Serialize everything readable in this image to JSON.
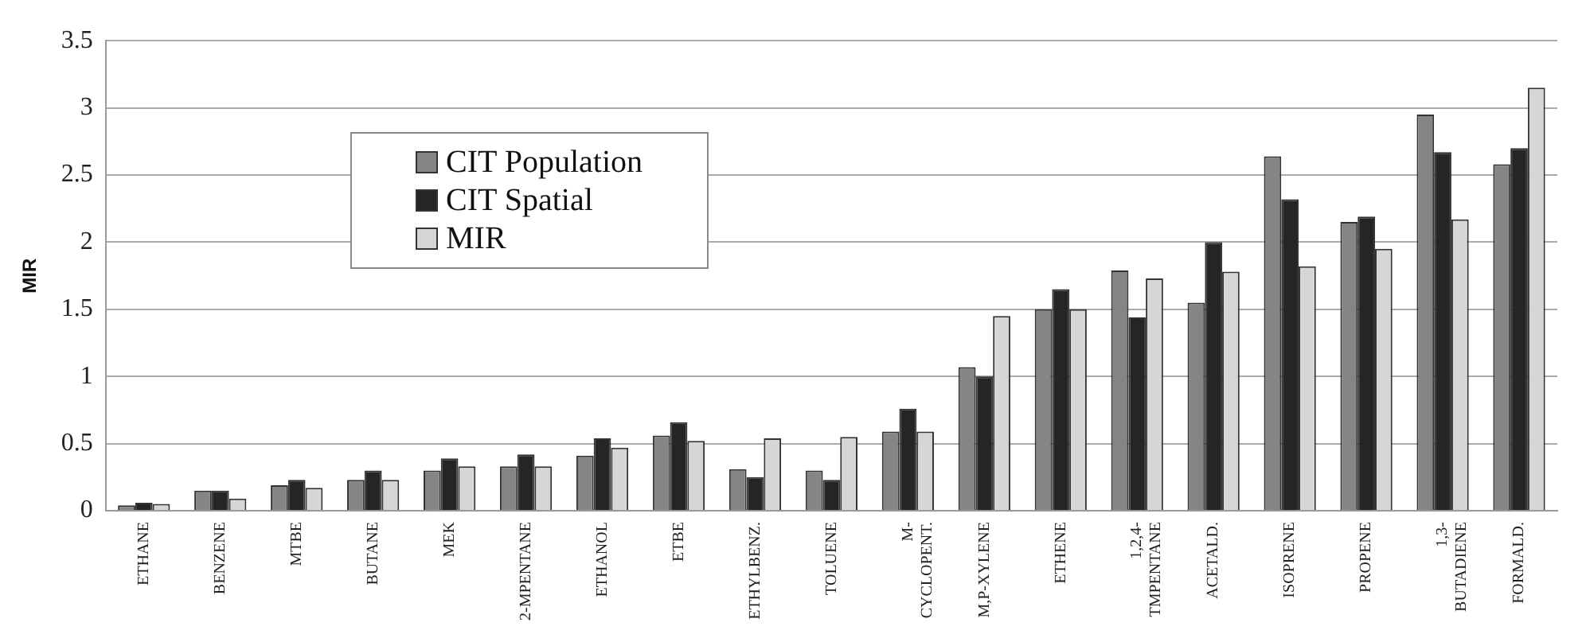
{
  "chart_data": {
    "type": "bar",
    "ylabel": "MIR",
    "categories": [
      "ETHANE",
      "BENZENE",
      "MTBE",
      "BUTANE",
      "MEK",
      "2-MPENTANE",
      "ETHANOL",
      "ETBE",
      "ETHYLBENZ.",
      "TOLUENE",
      "M- CYCLOPENT.",
      "M,P-XYLENE",
      "ETHENE",
      "1,2,4- TMPENTANE",
      "ACETALD.",
      "ISOPRENE",
      "PROPENE",
      "1,3- BUTADIENE",
      "FORMALD."
    ],
    "series": [
      {
        "name": "CIT Population",
        "color": "#858585",
        "values": [
          0.04,
          0.15,
          0.19,
          0.23,
          0.3,
          0.33,
          0.41,
          0.56,
          0.31,
          0.3,
          0.59,
          1.07,
          1.5,
          1.79,
          1.55,
          2.64,
          2.15,
          2.95,
          2.58
        ]
      },
      {
        "name": "CIT Spatial",
        "color": "#252525",
        "values": [
          0.06,
          0.15,
          0.23,
          0.3,
          0.39,
          0.42,
          0.54,
          0.66,
          0.25,
          0.23,
          0.76,
          1.0,
          1.65,
          1.44,
          2.0,
          2.32,
          2.19,
          2.67,
          2.7
        ]
      },
      {
        "name": "MIR",
        "color": "#d6d6d6",
        "values": [
          0.05,
          0.09,
          0.17,
          0.23,
          0.33,
          0.33,
          0.47,
          0.52,
          0.54,
          0.55,
          0.59,
          1.45,
          1.5,
          1.73,
          1.78,
          1.82,
          1.95,
          2.17,
          3.15
        ]
      }
    ],
    "ylim": [
      0,
      3.5
    ],
    "yticks": [
      0,
      0.5,
      1,
      1.5,
      2,
      2.5,
      3,
      3.5
    ],
    "grid": "y",
    "legend": "top left"
  }
}
